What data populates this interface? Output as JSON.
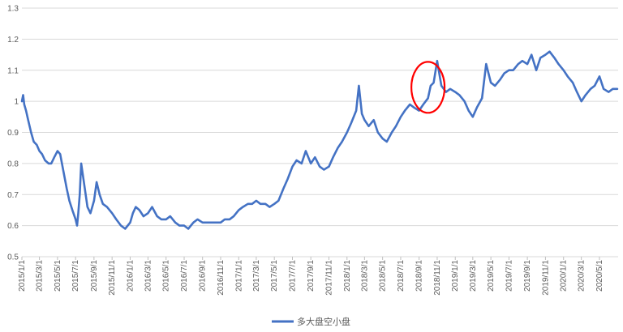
{
  "chart_data": {
    "type": "line",
    "title": "",
    "xlabel": "",
    "ylabel": "",
    "ylim": [
      0.5,
      1.3
    ],
    "yticks": [
      "0.5",
      "0.6",
      "0.7",
      "0.8",
      "0.9",
      "1",
      "1.1",
      "1.2",
      "1.3"
    ],
    "xticks": [
      "2015/1/1",
      "2015/3/1",
      "2015/5/1",
      "2015/7/1",
      "2015/9/1",
      "2015/11/1",
      "2016/1/1",
      "2016/3/1",
      "2016/5/1",
      "2016/7/1",
      "2016/9/1",
      "2016/11/1",
      "2017/1/1",
      "2017/3/1",
      "2017/5/1",
      "2017/7/1",
      "2017/9/1",
      "2017/11/1",
      "2018/1/1",
      "2018/3/1",
      "2018/5/1",
      "2018/7/1",
      "2018/9/1",
      "2018/11/1",
      "2019/1/1",
      "2019/3/1",
      "2019/5/1",
      "2019/7/1",
      "2019/9/1",
      "2019/11/1",
      "2020/1/1",
      "2020/3/1",
      "2020/5/1"
    ],
    "grid": true,
    "legend_position": "bottom",
    "series": [
      {
        "name": "多大盘空小盘",
        "color": "#4472C4",
        "x": [
          "2015-01-01",
          "2015-01-05",
          "2015-01-09",
          "2015-01-15",
          "2015-01-22",
          "2015-02-01",
          "2015-02-10",
          "2015-02-20",
          "2015-03-01",
          "2015-03-10",
          "2015-03-20",
          "2015-04-01",
          "2015-04-10",
          "2015-04-20",
          "2015-05-01",
          "2015-05-10",
          "2015-05-20",
          "2015-06-01",
          "2015-06-10",
          "2015-06-20",
          "2015-07-01",
          "2015-07-06",
          "2015-07-10",
          "2015-07-15",
          "2015-07-20",
          "2015-08-01",
          "2015-08-10",
          "2015-08-20",
          "2015-09-01",
          "2015-09-10",
          "2015-09-20",
          "2015-10-01",
          "2015-10-15",
          "2015-11-01",
          "2015-11-15",
          "2015-12-01",
          "2015-12-15",
          "2016-01-01",
          "2016-01-10",
          "2016-01-20",
          "2016-02-01",
          "2016-02-15",
          "2016-03-01",
          "2016-03-15",
          "2016-04-01",
          "2016-04-15",
          "2016-05-01",
          "2016-05-15",
          "2016-06-01",
          "2016-06-15",
          "2016-07-01",
          "2016-07-15",
          "2016-08-01",
          "2016-08-15",
          "2016-09-01",
          "2016-09-15",
          "2016-10-01",
          "2016-10-15",
          "2016-11-01",
          "2016-11-15",
          "2016-12-01",
          "2016-12-15",
          "2017-01-01",
          "2017-01-15",
          "2017-02-01",
          "2017-02-15",
          "2017-03-01",
          "2017-03-15",
          "2017-04-01",
          "2017-04-15",
          "2017-05-01",
          "2017-05-15",
          "2017-06-01",
          "2017-06-15",
          "2017-07-01",
          "2017-07-15",
          "2017-08-01",
          "2017-08-15",
          "2017-09-01",
          "2017-09-15",
          "2017-10-01",
          "2017-10-15",
          "2017-11-01",
          "2017-11-15",
          "2017-12-01",
          "2017-12-15",
          "2018-01-01",
          "2018-01-15",
          "2018-02-01",
          "2018-02-10",
          "2018-02-20",
          "2018-03-01",
          "2018-03-15",
          "2018-04-01",
          "2018-04-15",
          "2018-05-01",
          "2018-05-15",
          "2018-06-01",
          "2018-06-15",
          "2018-07-01",
          "2018-07-15",
          "2018-08-01",
          "2018-08-15",
          "2018-09-01",
          "2018-09-15",
          "2018-10-01",
          "2018-10-10",
          "2018-10-20",
          "2018-11-01",
          "2018-11-15",
          "2018-12-01",
          "2018-12-15",
          "2019-01-01",
          "2019-01-15",
          "2019-02-01",
          "2019-02-15",
          "2019-03-01",
          "2019-03-15",
          "2019-04-01",
          "2019-04-15",
          "2019-05-01",
          "2019-05-15",
          "2019-06-01",
          "2019-06-15",
          "2019-07-01",
          "2019-07-15",
          "2019-08-01",
          "2019-08-15",
          "2019-09-01",
          "2019-09-15",
          "2019-10-01",
          "2019-10-15",
          "2019-11-01",
          "2019-11-15",
          "2019-12-01",
          "2019-12-15",
          "2020-01-01",
          "2020-01-15",
          "2020-02-01",
          "2020-02-15",
          "2020-03-01",
          "2020-03-15",
          "2020-04-01",
          "2020-04-15",
          "2020-05-01",
          "2020-05-15",
          "2020-06-01",
          "2020-06-15",
          "2020-06-30"
        ],
        "values": [
          1.0,
          1.02,
          0.99,
          0.97,
          0.94,
          0.9,
          0.87,
          0.86,
          0.84,
          0.83,
          0.81,
          0.8,
          0.8,
          0.82,
          0.84,
          0.83,
          0.78,
          0.72,
          0.68,
          0.65,
          0.62,
          0.6,
          0.64,
          0.7,
          0.8,
          0.72,
          0.66,
          0.64,
          0.68,
          0.74,
          0.7,
          0.67,
          0.66,
          0.64,
          0.62,
          0.6,
          0.59,
          0.61,
          0.64,
          0.66,
          0.65,
          0.63,
          0.64,
          0.66,
          0.63,
          0.62,
          0.62,
          0.63,
          0.61,
          0.6,
          0.6,
          0.59,
          0.61,
          0.62,
          0.61,
          0.61,
          0.61,
          0.61,
          0.61,
          0.62,
          0.62,
          0.63,
          0.65,
          0.66,
          0.67,
          0.67,
          0.68,
          0.67,
          0.67,
          0.66,
          0.67,
          0.68,
          0.72,
          0.75,
          0.79,
          0.81,
          0.8,
          0.84,
          0.8,
          0.82,
          0.79,
          0.78,
          0.79,
          0.82,
          0.85,
          0.87,
          0.9,
          0.93,
          0.97,
          1.05,
          0.96,
          0.94,
          0.92,
          0.94,
          0.9,
          0.88,
          0.87,
          0.9,
          0.92,
          0.95,
          0.97,
          0.99,
          0.98,
          0.97,
          0.99,
          1.01,
          1.05,
          1.06,
          1.13,
          1.05,
          1.03,
          1.04,
          1.03,
          1.02,
          1.0,
          0.97,
          0.95,
          0.98,
          1.01,
          1.12,
          1.06,
          1.05,
          1.07,
          1.09,
          1.1,
          1.1,
          1.12,
          1.13,
          1.12,
          1.15,
          1.1,
          1.14,
          1.15,
          1.16,
          1.14,
          1.12,
          1.1,
          1.08,
          1.06,
          1.03,
          1.0,
          1.02,
          1.04,
          1.05,
          1.08,
          1.04,
          1.03,
          1.04,
          1.04
        ]
      }
    ],
    "annotations": [
      {
        "type": "ellipse",
        "color": "#FF0000",
        "label": "",
        "cx": "2018-10-01",
        "cy": 1.045,
        "rx_days": 56,
        "ry": 0.082
      }
    ]
  }
}
